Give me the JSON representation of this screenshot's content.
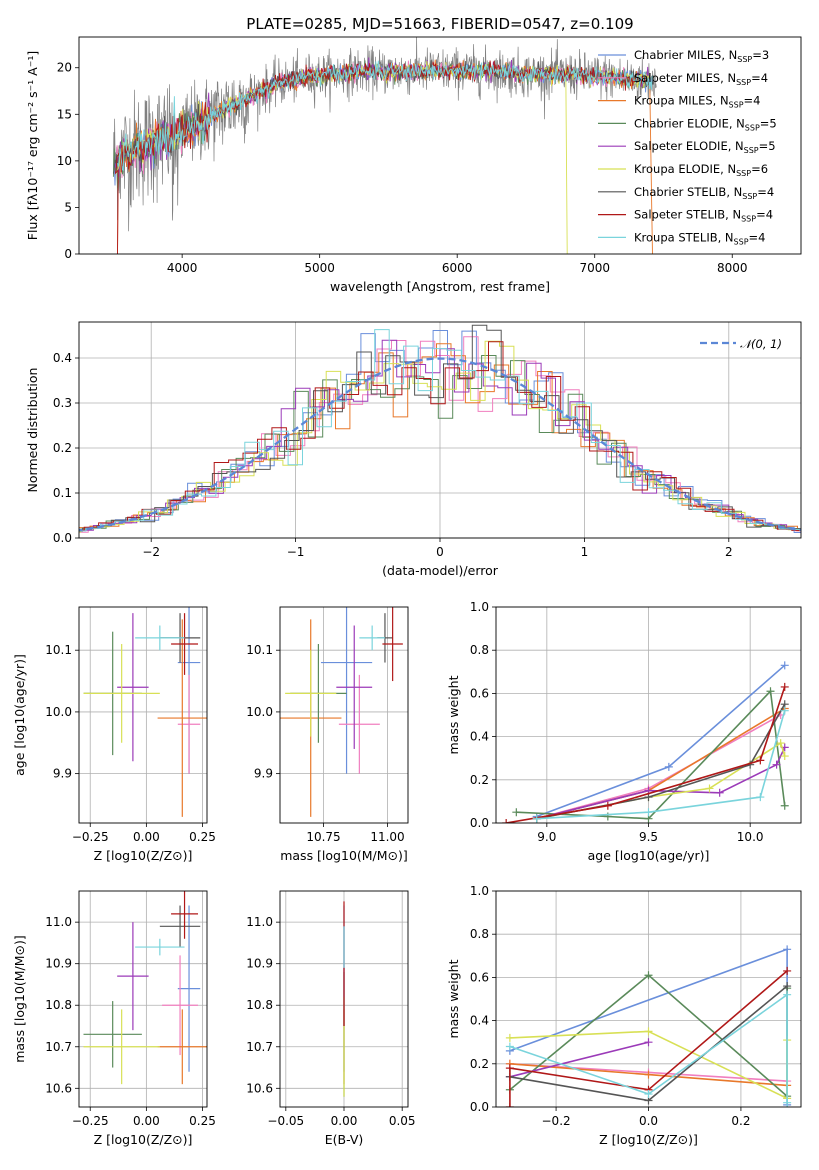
{
  "chart_data": [
    {
      "type": "line",
      "title": "PLATE=0285, MJD=51663, FIBERID=0547, z=0.109",
      "xlabel": "wavelength [Angstrom, rest frame]",
      "ylabel": "Flux [fλ10⁻¹⁷ erg cm⁻² s⁻¹ A⁻¹]",
      "xlim": [
        3250,
        8500
      ],
      "ylim": [
        0,
        23.3
      ],
      "xticks": [
        4000,
        5000,
        6000,
        7000,
        8000
      ],
      "yticks": [
        0,
        5,
        10,
        15,
        20
      ],
      "legend_position": "right",
      "grid": false,
      "series": [
        {
          "name": "Chabrier MILES, NSSP=3",
          "color": "#6a8fdb"
        },
        {
          "name": "Salpeter MILES, NSSP=4",
          "color": "#f07fbf"
        },
        {
          "name": "Kroupa MILES, NSSP=4",
          "color": "#e8782a"
        },
        {
          "name": "Chabrier ELODIE, NSSP=5",
          "color": "#5a8a5a"
        },
        {
          "name": "Salpeter ELODIE, NSSP=5",
          "color": "#9b3ab8"
        },
        {
          "name": "Kroupa ELODIE, NSSP=6",
          "color": "#d8e055"
        },
        {
          "name": "Chabrier STELIB, NSSP=4",
          "color": "#555555"
        },
        {
          "name": "Salpeter STELIB, NSSP=4",
          "color": "#b01818"
        },
        {
          "name": "Kroupa STELIB, NSSP=4",
          "color": "#7ad4dc"
        }
      ],
      "continuum": {
        "x": [
          3500,
          3700,
          3900,
          4100,
          4300,
          4500,
          4700,
          4900,
          5100,
          5300,
          5500,
          5700,
          5900,
          6100,
          6300,
          6500,
          6700,
          6900,
          7100,
          7300,
          7450
        ],
        "y": [
          10.0,
          11.5,
          12.5,
          14.0,
          15.5,
          17.0,
          18.3,
          19.0,
          19.3,
          19.6,
          19.6,
          19.6,
          19.7,
          19.6,
          19.6,
          19.3,
          19.3,
          19.2,
          19.0,
          18.7,
          18.5
        ]
      }
    },
    {
      "type": "histogram",
      "xlabel": "(data-model)/error",
      "ylabel": "Normed distribution",
      "xlim": [
        -2.5,
        2.5
      ],
      "ylim": [
        0,
        0.48
      ],
      "xticks": [
        -2,
        -1,
        0,
        1,
        2
      ],
      "yticks": [
        0.0,
        0.1,
        0.2,
        0.3,
        0.4
      ],
      "grid": true,
      "legend": "𝒩(0, 1)",
      "legend_position": "upper right",
      "bin_width": 0.1
    },
    {
      "type": "scatter",
      "xlabel": "Z [log10(Z/Z⊙)]",
      "ylabel": "age  [log10(age/yr)]",
      "xlim": [
        -0.3,
        0.27
      ],
      "ylim": [
        9.82,
        10.17
      ],
      "xticks": [
        -0.25,
        0.0,
        0.25
      ],
      "yticks": [
        9.9,
        10.0,
        10.1
      ],
      "grid": true,
      "points": [
        {
          "x": 0.19,
          "y": 10.08,
          "xerr": 0.05,
          "yerr": 0.18,
          "color": "#6a8fdb"
        },
        {
          "x": 0.19,
          "y": 9.98,
          "xerr": 0.05,
          "yerr": 0.08,
          "color": "#f07fbf"
        },
        {
          "x": 0.16,
          "y": 9.99,
          "xerr": 0.11,
          "yerr": 0.16,
          "color": "#e8782a"
        },
        {
          "x": -0.15,
          "y": 10.03,
          "xerr": 0.13,
          "yerr": 0.1,
          "color": "#5a8a5a"
        },
        {
          "x": -0.06,
          "y": 10.04,
          "xerr": 0.07,
          "yerr": 0.12,
          "color": "#9b3ab8"
        },
        {
          "x": -0.11,
          "y": 10.03,
          "xerr": 0.17,
          "yerr": 0.08,
          "color": "#d8e055"
        },
        {
          "x": 0.15,
          "y": 10.12,
          "xerr": 0.09,
          "yerr": 0.04,
          "color": "#555555"
        },
        {
          "x": 0.17,
          "y": 10.11,
          "xerr": 0.06,
          "yerr": 0.05,
          "color": "#b01818"
        },
        {
          "x": 0.06,
          "y": 10.12,
          "xerr": 0.11,
          "yerr": 0.02,
          "color": "#7ad4dc"
        }
      ]
    },
    {
      "type": "scatter",
      "xlabel": "mass [log10(M/M⊙)]",
      "ylabel": "",
      "xlim": [
        10.58,
        11.08
      ],
      "ylim": [
        9.82,
        10.17
      ],
      "xticks": [
        10.75,
        11.0
      ],
      "yticks": [
        9.9,
        10.0,
        10.1
      ],
      "grid": true,
      "points": [
        {
          "x": 10.84,
          "y": 10.08,
          "xerr": 0.1,
          "yerr": 0.18,
          "color": "#6a8fdb"
        },
        {
          "x": 10.89,
          "y": 9.98,
          "xerr": 0.08,
          "yerr": 0.08,
          "color": "#f07fbf"
        },
        {
          "x": 10.7,
          "y": 9.99,
          "xerr": 0.12,
          "yerr": 0.16,
          "color": "#e8782a"
        },
        {
          "x": 10.73,
          "y": 10.03,
          "xerr": 0.11,
          "yerr": 0.08,
          "color": "#5a8a5a"
        },
        {
          "x": 10.87,
          "y": 10.04,
          "xerr": 0.07,
          "yerr": 0.1,
          "color": "#9b3ab8"
        },
        {
          "x": 10.7,
          "y": 10.03,
          "xerr": 0.1,
          "yerr": 0.07,
          "color": "#d8e055"
        },
        {
          "x": 10.99,
          "y": 10.12,
          "xerr": 0.03,
          "yerr": 0.04,
          "color": "#555555"
        },
        {
          "x": 11.02,
          "y": 10.11,
          "xerr": 0.04,
          "yerr": 0.06,
          "color": "#b01818"
        },
        {
          "x": 10.94,
          "y": 10.12,
          "xerr": 0.05,
          "yerr": 0.02,
          "color": "#7ad4dc"
        }
      ]
    },
    {
      "type": "line",
      "xlabel": "age  [log10(age/yr)]",
      "ylabel": "mass weight",
      "xlim": [
        8.75,
        10.25
      ],
      "ylim": [
        0,
        1.0
      ],
      "xticks": [
        9.0,
        9.5,
        10.0
      ],
      "yticks": [
        0.0,
        0.2,
        0.4,
        0.6,
        0.8,
        1.0
      ],
      "grid": true,
      "series": [
        {
          "x": [
            8.95,
            9.6,
            10.17
          ],
          "y": [
            0.03,
            0.26,
            0.73
          ],
          "color": "#6a8fdb"
        },
        {
          "x": [
            8.95,
            9.5,
            10.15
          ],
          "y": [
            0.02,
            0.16,
            0.5
          ],
          "color": "#f07fbf"
        },
        {
          "x": [
            8.95,
            9.5,
            10.17
          ],
          "y": [
            0.02,
            0.15,
            0.53
          ],
          "color": "#e8782a"
        },
        {
          "x": [
            8.85,
            9.3,
            9.5,
            10.1,
            10.17
          ],
          "y": [
            0.05,
            0.03,
            0.02,
            0.61,
            0.08
          ],
          "color": "#5a8a5a"
        },
        {
          "x": [
            8.95,
            9.5,
            9.85,
            10.13,
            10.17
          ],
          "y": [
            0.02,
            0.15,
            0.14,
            0.27,
            0.35
          ],
          "color": "#9b3ab8"
        },
        {
          "x": [
            8.95,
            9.5,
            9.8,
            10.15,
            10.17
          ],
          "y": [
            0.02,
            0.12,
            0.16,
            0.37,
            0.31
          ],
          "color": "#d8e055"
        },
        {
          "x": [
            8.95,
            9.5,
            10.0,
            10.17
          ],
          "y": [
            0.02,
            0.12,
            0.27,
            0.55
          ],
          "color": "#555555"
        },
        {
          "x": [
            8.8,
            9.3,
            10.05,
            10.17
          ],
          "y": [
            0.0,
            0.08,
            0.29,
            0.63
          ],
          "color": "#b01818"
        },
        {
          "x": [
            8.95,
            9.5,
            10.05,
            10.17
          ],
          "y": [
            0.02,
            0.05,
            0.12,
            0.52
          ],
          "color": "#7ad4dc"
        }
      ]
    },
    {
      "type": "scatter",
      "xlabel": "Z [log10(Z/Z⊙)]",
      "ylabel": "mass [log10(M/M⊙)]",
      "xlim": [
        -0.3,
        0.27
      ],
      "ylim": [
        10.555,
        11.075
      ],
      "xticks": [
        -0.25,
        0.0,
        0.25
      ],
      "yticks": [
        10.6,
        10.7,
        10.8,
        10.9,
        11.0
      ],
      "grid": true,
      "points": [
        {
          "x": 0.19,
          "y": 10.84,
          "xerr": 0.05,
          "yerr": 0.2,
          "color": "#6a8fdb"
        },
        {
          "x": 0.15,
          "y": 10.8,
          "xerr": 0.08,
          "yerr": 0.12,
          "color": "#f07fbf"
        },
        {
          "x": 0.16,
          "y": 10.7,
          "xerr": 0.11,
          "yerr": 0.09,
          "color": "#e8782a"
        },
        {
          "x": -0.15,
          "y": 10.73,
          "xerr": 0.13,
          "yerr": 0.08,
          "color": "#5a8a5a"
        },
        {
          "x": -0.06,
          "y": 10.87,
          "xerr": 0.07,
          "yerr": 0.13,
          "color": "#9b3ab8"
        },
        {
          "x": -0.11,
          "y": 10.7,
          "xerr": 0.17,
          "yerr": 0.09,
          "color": "#d8e055"
        },
        {
          "x": 0.15,
          "y": 10.99,
          "xerr": 0.09,
          "yerr": 0.05,
          "color": "#555555"
        },
        {
          "x": 0.17,
          "y": 11.02,
          "xerr": 0.06,
          "yerr": 0.06,
          "color": "#b01818"
        },
        {
          "x": 0.06,
          "y": 10.94,
          "xerr": 0.11,
          "yerr": 0.02,
          "color": "#7ad4dc"
        }
      ]
    },
    {
      "type": "scatter",
      "xlabel": "E(B-V)",
      "ylabel": "",
      "xlim": [
        -0.055,
        0.055
      ],
      "ylim": [
        10.555,
        11.075
      ],
      "xticks": [
        -0.05,
        0.0,
        0.05
      ],
      "yticks": [
        10.6,
        10.7,
        10.8,
        10.9,
        11.0
      ],
      "grid": true,
      "points": [
        {
          "x": 0.0,
          "y": 10.84,
          "xerr": 0,
          "yerr": 0.2,
          "color": "#6a8fdb"
        },
        {
          "x": 0.0,
          "y": 10.7,
          "xerr": 0,
          "yerr": 0.09,
          "color": "#e8782a"
        },
        {
          "x": 0.0,
          "y": 10.73,
          "xerr": 0,
          "yerr": 0.15,
          "color": "#5a8a5a"
        },
        {
          "x": 0.0,
          "y": 10.87,
          "xerr": 0,
          "yerr": 0.12,
          "color": "#9b3ab8"
        },
        {
          "x": 0.0,
          "y": 10.7,
          "xerr": 0,
          "yerr": 0.12,
          "color": "#d8e055"
        },
        {
          "x": 0.0,
          "y": 10.9,
          "xerr": 0,
          "yerr": 0.15,
          "color": "#b01818"
        },
        {
          "x": 0.0,
          "y": 10.94,
          "xerr": 0,
          "yerr": 0.05,
          "color": "#7ad4dc"
        }
      ]
    },
    {
      "type": "line",
      "xlabel": "Z [log10(Z/Z⊙)]",
      "ylabel": "mass weight",
      "xlim": [
        -0.33,
        0.33
      ],
      "ylim": [
        0,
        1.0
      ],
      "xticks": [
        -0.2,
        0.0,
        0.2
      ],
      "yticks": [
        0.0,
        0.2,
        0.4,
        0.6,
        0.8,
        1.0
      ],
      "grid": true,
      "series": [
        {
          "x": [
            -0.3,
            0.3,
            0.3
          ],
          "y": [
            0.26,
            0.73,
            0.01
          ],
          "color": "#6a8fdb"
        },
        {
          "x": [
            -0.3,
            0.0,
            0.3
          ],
          "y": [
            0.2,
            0.16,
            0.12
          ],
          "color": "#f07fbf"
        },
        {
          "x": [
            -0.3,
            0.0,
            0.3
          ],
          "y": [
            0.2,
            0.15,
            0.1
          ],
          "color": "#e8782a"
        },
        {
          "x": [
            -0.3,
            0.0,
            0.3,
            0.3
          ],
          "y": [
            0.08,
            0.61,
            0.05,
            0.55
          ],
          "color": "#5a8a5a"
        },
        {
          "x": [
            -0.3,
            0.0
          ],
          "y": [
            0.14,
            0.3
          ],
          "color": "#9b3ab8"
        },
        {
          "x": [
            -0.3,
            0.0,
            0.3,
            0.3
          ],
          "y": [
            0.32,
            0.35,
            0.04,
            0.31
          ],
          "color": "#d8e055"
        },
        {
          "x": [
            -0.3,
            0.0,
            0.3
          ],
          "y": [
            0.14,
            0.03,
            0.56
          ],
          "color": "#555555"
        },
        {
          "x": [
            -0.3,
            -0.3,
            0.0,
            0.3
          ],
          "y": [
            0.0,
            0.18,
            0.08,
            0.63
          ],
          "color": "#b01818"
        },
        {
          "x": [
            -0.3,
            0.0,
            0.3,
            0.3
          ],
          "y": [
            0.28,
            0.06,
            0.52,
            0.02
          ],
          "color": "#7ad4dc"
        }
      ]
    }
  ]
}
